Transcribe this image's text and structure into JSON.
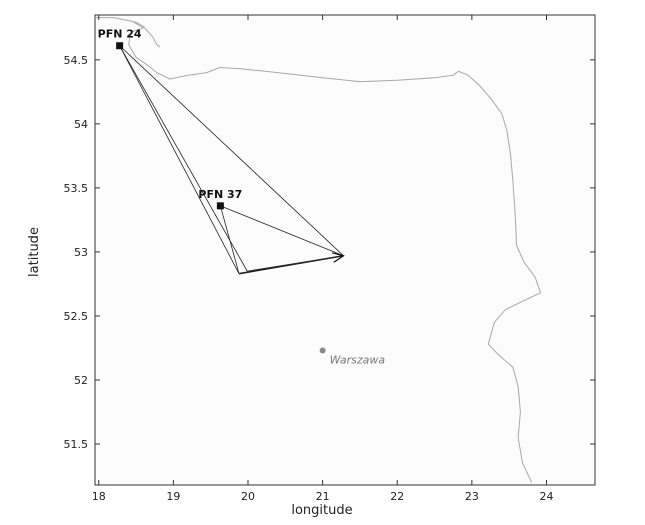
{
  "chart_data": {
    "type": "scatter",
    "title": "",
    "xlabel": "longitude",
    "ylabel": "latitude",
    "xlim": [
      17.95,
      24.65
    ],
    "ylim": [
      51.18,
      54.85
    ],
    "x_ticks": [
      18,
      19,
      20,
      21,
      22,
      23,
      24
    ],
    "y_ticks": [
      51.5,
      52,
      52.5,
      53,
      53.5,
      54,
      54.5
    ],
    "grid": false,
    "legend": "none",
    "stations": [
      {
        "name": "PFN 24",
        "lon": 18.28,
        "lat": 54.61
      },
      {
        "name": "PFN 37",
        "lon": 19.63,
        "lat": 53.36
      }
    ],
    "cities": [
      {
        "name": "Warszawa",
        "lon": 21.0,
        "lat": 52.23
      }
    ],
    "track_segments": [
      {
        "from": [
          18.28,
          54.61
        ],
        "to": [
          21.28,
          52.97
        ]
      },
      {
        "from": [
          18.28,
          54.61
        ],
        "to": [
          19.99,
          52.85
        ]
      },
      {
        "from": [
          18.28,
          54.61
        ],
        "to": [
          19.88,
          52.83
        ]
      },
      {
        "from": [
          19.63,
          53.36
        ],
        "to": [
          21.28,
          52.97
        ]
      },
      {
        "from": [
          19.63,
          53.36
        ],
        "to": [
          19.88,
          52.83
        ]
      },
      {
        "from": [
          19.99,
          52.85
        ],
        "to": [
          21.28,
          52.97
        ]
      },
      {
        "from": [
          19.88,
          52.83
        ],
        "to": [
          21.28,
          52.97
        ],
        "bold": true
      }
    ],
    "coastline": [
      [
        17.95,
        54.83
      ],
      [
        18.2,
        54.83
      ],
      [
        18.45,
        54.8
      ],
      [
        18.6,
        54.75
      ],
      [
        18.45,
        54.72
      ],
      [
        18.42,
        54.68
      ],
      [
        18.4,
        54.62
      ],
      [
        18.5,
        54.52
      ],
      [
        18.65,
        54.46
      ],
      [
        18.78,
        54.4
      ],
      [
        18.95,
        54.35
      ],
      [
        19.2,
        54.38
      ],
      [
        19.45,
        54.4
      ],
      [
        19.62,
        54.44
      ],
      [
        19.9,
        54.43
      ],
      [
        20.4,
        54.4
      ],
      [
        21.0,
        54.36
      ],
      [
        21.5,
        54.33
      ],
      [
        22.0,
        54.34
      ],
      [
        22.5,
        54.36
      ],
      [
        22.75,
        54.38
      ],
      [
        22.82,
        54.41
      ],
      [
        22.95,
        54.38
      ],
      [
        23.1,
        54.3
      ],
      [
        23.25,
        54.2
      ],
      [
        23.4,
        54.08
      ],
      [
        23.47,
        53.95
      ],
      [
        23.52,
        53.75
      ],
      [
        23.55,
        53.55
      ],
      [
        23.58,
        53.3
      ],
      [
        23.6,
        53.05
      ],
      [
        23.7,
        52.92
      ],
      [
        23.85,
        52.8
      ],
      [
        23.92,
        52.68
      ],
      [
        23.7,
        52.62
      ],
      [
        23.45,
        52.55
      ],
      [
        23.3,
        52.45
      ],
      [
        23.22,
        52.28
      ],
      [
        23.35,
        52.2
      ],
      [
        23.55,
        52.1
      ],
      [
        23.62,
        51.95
      ],
      [
        23.65,
        51.75
      ],
      [
        23.62,
        51.55
      ],
      [
        23.68,
        51.35
      ],
      [
        23.8,
        51.2
      ]
    ],
    "spit": [
      [
        18.48,
        54.8
      ],
      [
        18.6,
        54.76
      ],
      [
        18.72,
        54.68
      ],
      [
        18.78,
        54.62
      ],
      [
        18.82,
        54.6
      ]
    ]
  }
}
